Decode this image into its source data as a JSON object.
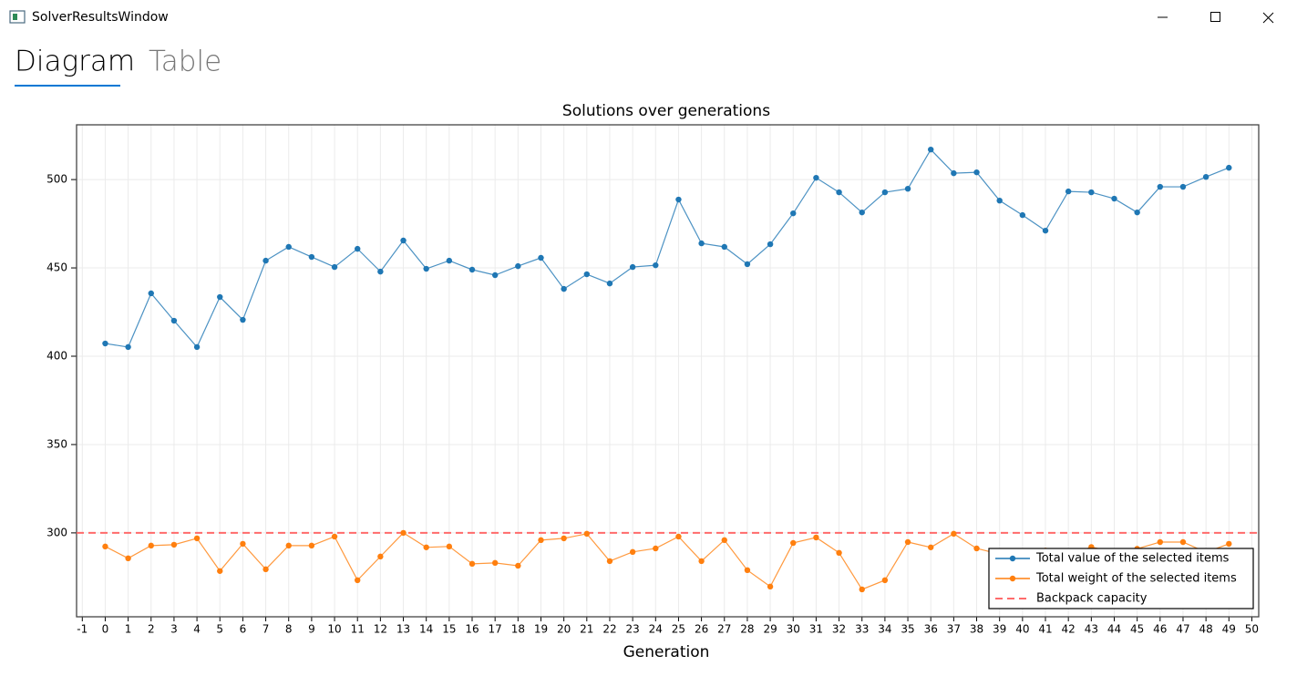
{
  "window_title": "SolverResultsWindow",
  "tabs": [
    "Diagram",
    "Table"
  ],
  "chart_data": {
    "type": "line",
    "title": "Solutions over generations",
    "x_label": "Generation",
    "x": [
      0,
      1,
      2,
      3,
      4,
      5,
      6,
      7,
      8,
      9,
      10,
      11,
      12,
      13,
      14,
      15,
      16,
      17,
      18,
      19,
      20,
      21,
      22,
      23,
      24,
      25,
      26,
      27,
      28,
      29,
      30,
      31,
      32,
      33,
      34,
      35,
      36,
      37,
      38,
      39,
      40,
      41,
      42,
      43,
      44,
      45,
      46,
      47,
      48,
      49
    ],
    "series": [
      {
        "name": "Total value of the selected items",
        "color": "#1f77b4",
        "values": [
          407.2,
          405.2,
          435.6,
          420.1,
          405.2,
          433.5,
          420.6,
          454.1,
          461.9,
          456.2,
          450.5,
          460.8,
          447.9,
          465.5,
          449.5,
          454.1,
          449,
          445.9,
          451,
          455.7,
          438.1,
          446.4,
          441.2,
          450.5,
          451.5,
          488.7,
          463.9,
          461.9,
          452.1,
          463.4,
          480.9,
          501,
          492.8,
          481.4,
          492.8,
          494.8,
          517,
          503.6,
          504.1,
          488.1,
          479.9,
          471.1,
          493.3,
          492.8,
          489.2,
          481.4,
          495.9,
          495.9,
          501.5,
          506.7
        ]
      },
      {
        "name": "Total weight of the selected items",
        "color": "#ff7f0e",
        "values": [
          292.3,
          285.6,
          292.8,
          293.3,
          296.9,
          278.4,
          293.8,
          279.4,
          292.8,
          292.8,
          297.9,
          273.2,
          286.6,
          300,
          291.8,
          292.3,
          282.5,
          283,
          281.4,
          295.9,
          296.9,
          299.5,
          284,
          289.2,
          291.2,
          297.9,
          284,
          295.9,
          278.9,
          269.6,
          294.3,
          297.4,
          288.7,
          268,
          273.2,
          294.8,
          291.8,
          299.5,
          291.2,
          288,
          285,
          290,
          287,
          292,
          289,
          291,
          294.8,
          294.8,
          289,
          293.8
        ]
      }
    ],
    "hlines": [
      {
        "name": "Backpack capacity",
        "value": 300,
        "color": "#ff6b6b"
      }
    ],
    "xlim": [
      -1.25,
      50.3
    ],
    "xticks": [
      -1,
      0,
      1,
      2,
      3,
      4,
      5,
      6,
      7,
      8,
      9,
      10,
      11,
      12,
      13,
      14,
      15,
      16,
      17,
      18,
      19,
      20,
      21,
      22,
      23,
      24,
      25,
      26,
      27,
      28,
      29,
      30,
      31,
      32,
      33,
      34,
      35,
      36,
      37,
      38,
      39,
      40,
      41,
      42,
      43,
      44,
      45,
      46,
      47,
      48,
      49,
      50
    ],
    "ylim": [
      252.5,
      531
    ],
    "yticks": [
      300,
      350,
      400,
      450,
      500
    ],
    "grid": true,
    "legend": "lower right"
  }
}
